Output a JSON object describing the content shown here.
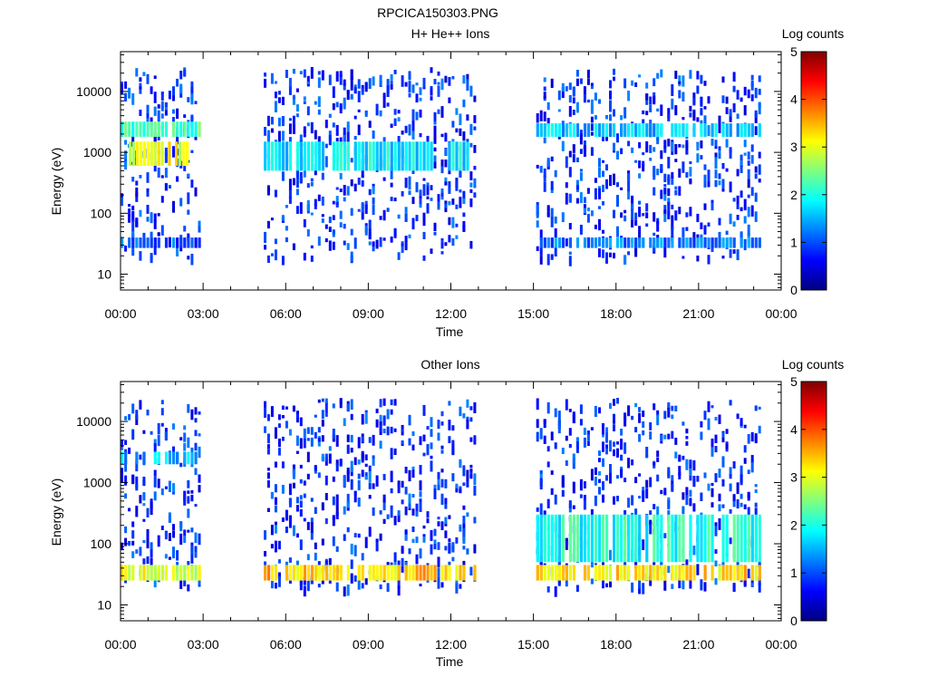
{
  "figure_title": "RPCICA150303.PNG",
  "colorbar": {
    "label": "Log counts",
    "ticks": [
      "0",
      "1",
      "2",
      "3",
      "4",
      "5"
    ],
    "range": [
      0,
      5
    ],
    "colormap": [
      "#00007f",
      "#0000ff",
      "#007fff",
      "#00ffff",
      "#7fff7f",
      "#ffff00",
      "#ff7f00",
      "#ff0000",
      "#7f0000"
    ]
  },
  "chart_data": [
    {
      "type": "heatmap",
      "title": "H+ He++ Ions",
      "xlabel": "Time",
      "ylabel": "Energy (eV)",
      "x_ticks": [
        "00:00",
        "03:00",
        "06:00",
        "09:00",
        "12:00",
        "15:00",
        "18:00",
        "21:00",
        "00:00"
      ],
      "xlim_hours": [
        0,
        24
      ],
      "y_scale": "log",
      "ylim": [
        5.5,
        45000
      ],
      "y_ticks": [
        10,
        100,
        1000,
        10000
      ],
      "y_tick_labels": [
        "10",
        "100",
        "1000",
        "10000"
      ],
      "z_label": "Log counts",
      "zlim": [
        0,
        5
      ],
      "data_intervals_hours": [
        [
          0,
          2.95
        ],
        [
          5.2,
          12.95
        ],
        [
          15.1,
          23.3
        ]
      ],
      "bands": [
        {
          "from_hour": 0,
          "to_hour": 2.95,
          "energy_low_eV": 1800,
          "energy_high_eV": 3200,
          "log_counts": 2.2
        },
        {
          "from_hour": 0.3,
          "to_hour": 2.5,
          "energy_low_eV": 600,
          "energy_high_eV": 1500,
          "log_counts": 3.0
        },
        {
          "from_hour": 0,
          "to_hour": 2.95,
          "energy_low_eV": 27,
          "energy_high_eV": 40,
          "log_counts": 1.0
        },
        {
          "from_hour": 5.2,
          "to_hour": 12.95,
          "energy_low_eV": 500,
          "energy_high_eV": 1500,
          "log_counts": 1.8
        },
        {
          "from_hour": 15.1,
          "to_hour": 23.3,
          "energy_low_eV": 1800,
          "energy_high_eV": 3000,
          "log_counts": 1.6
        },
        {
          "from_hour": 15.1,
          "to_hour": 23.3,
          "energy_low_eV": 27,
          "energy_high_eV": 40,
          "log_counts": 1.2
        }
      ]
    },
    {
      "type": "heatmap",
      "title": "Other Ions",
      "xlabel": "Time",
      "ylabel": "Energy (eV)",
      "x_ticks": [
        "00:00",
        "03:00",
        "06:00",
        "09:00",
        "12:00",
        "15:00",
        "18:00",
        "21:00",
        "00:00"
      ],
      "xlim_hours": [
        0,
        24
      ],
      "y_scale": "log",
      "ylim": [
        5.5,
        45000
      ],
      "y_ticks": [
        10,
        100,
        1000,
        10000
      ],
      "y_tick_labels": [
        "10",
        "100",
        "1000",
        "10000"
      ],
      "z_label": "Log counts",
      "zlim": [
        0,
        5
      ],
      "data_intervals_hours": [
        [
          0,
          2.95
        ],
        [
          5.2,
          12.95
        ],
        [
          15.1,
          23.3
        ]
      ],
      "bands": [
        {
          "from_hour": 0,
          "to_hour": 2.95,
          "energy_low_eV": 2000,
          "energy_high_eV": 3200,
          "log_counts": 1.5
        },
        {
          "from_hour": 0,
          "to_hour": 2.95,
          "energy_low_eV": 25,
          "energy_high_eV": 45,
          "log_counts": 3.0
        },
        {
          "from_hour": 5.2,
          "to_hour": 12.95,
          "energy_low_eV": 25,
          "energy_high_eV": 45,
          "log_counts": 3.4
        },
        {
          "from_hour": 15.1,
          "to_hour": 23.3,
          "energy_low_eV": 25,
          "energy_high_eV": 45,
          "log_counts": 3.3
        },
        {
          "from_hour": 15.1,
          "to_hour": 23.3,
          "energy_low_eV": 50,
          "energy_high_eV": 300,
          "log_counts": 2.0
        }
      ]
    }
  ]
}
